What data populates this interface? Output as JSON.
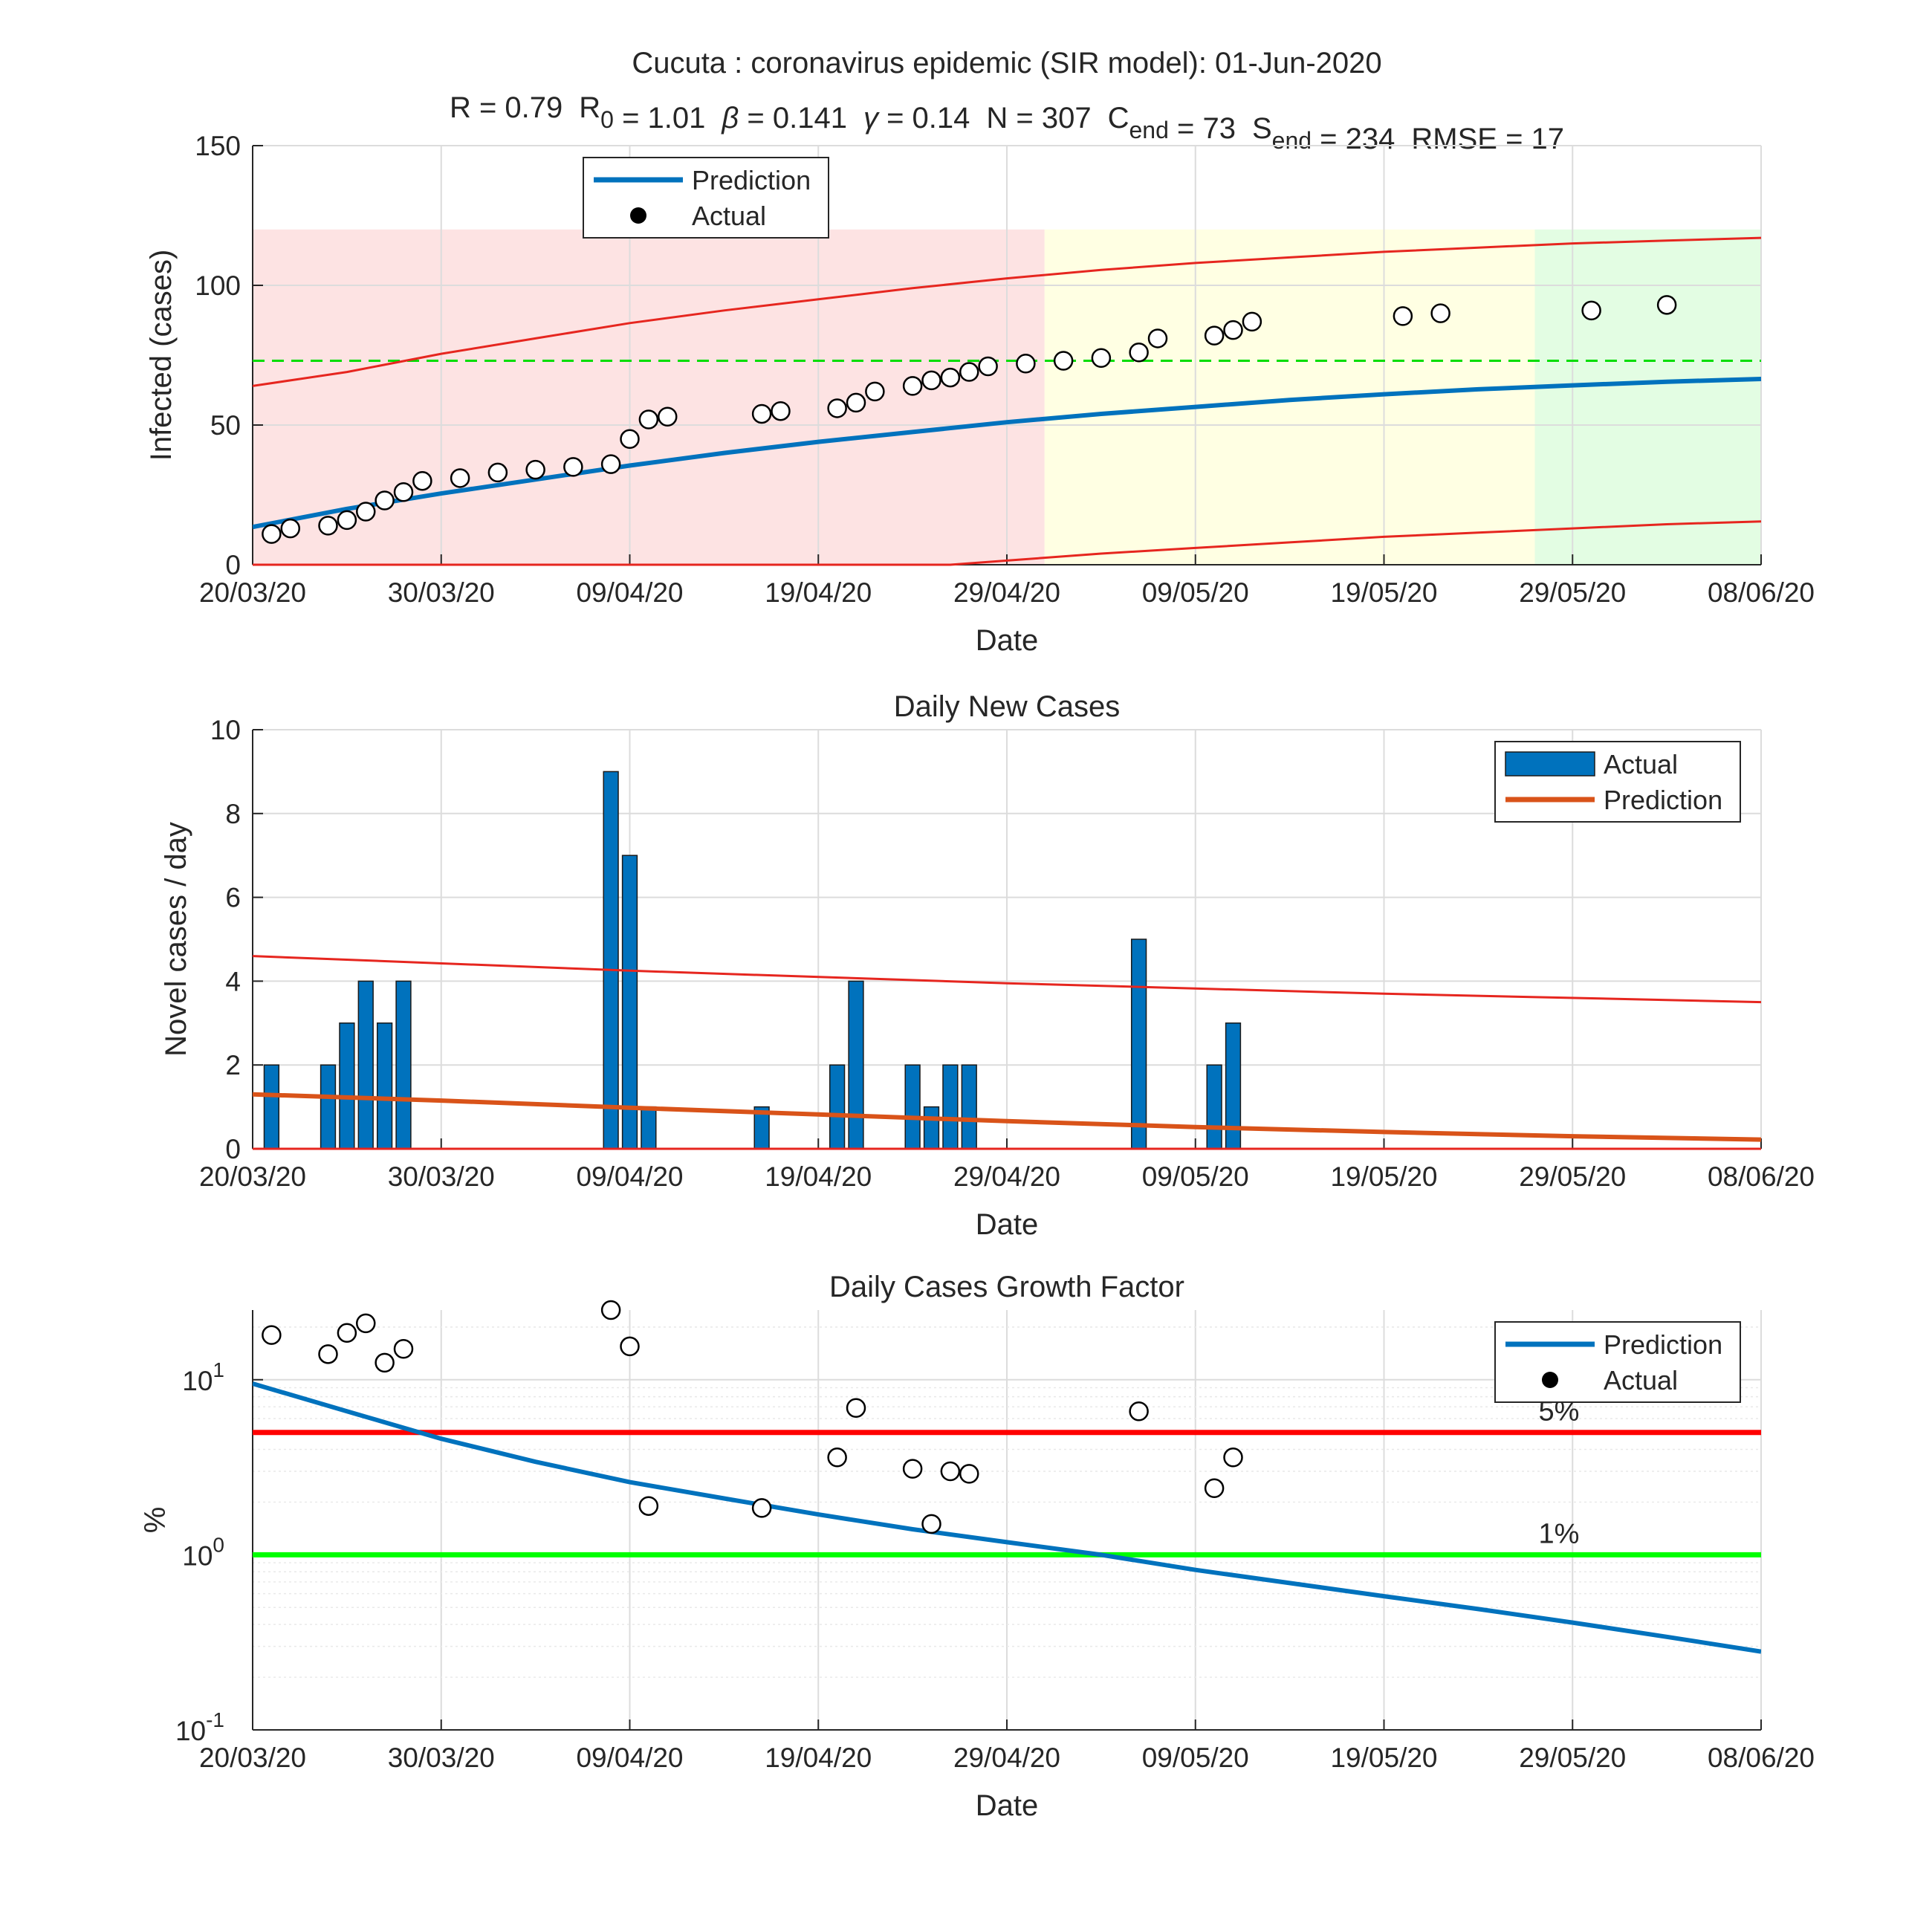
{
  "figure": {
    "title_line1": "Cucuta : coronavirus epidemic (SIR model): 01-Jun-2020",
    "stats": [
      {
        "label": "R",
        "sub": "",
        "value": "0.79"
      },
      {
        "label": "R",
        "sub": "0",
        "value": "1.01"
      },
      {
        "label": "β",
        "sub": "",
        "value": "0.141"
      },
      {
        "label": "γ",
        "sub": "",
        "value": "0.14"
      },
      {
        "label": "N",
        "sub": "",
        "value": "307"
      },
      {
        "label": "C",
        "sub": "end",
        "value": "73"
      },
      {
        "label": "S",
        "sub": "end",
        "value": "234"
      },
      {
        "label": "RMSE",
        "sub": "",
        "value": "17"
      }
    ],
    "x_tick_labels": [
      "20/03/20",
      "30/03/20",
      "09/04/20",
      "19/04/20",
      "29/04/20",
      "09/05/20",
      "19/05/20",
      "29/05/20",
      "08/06/20"
    ],
    "colors": {
      "prediction_blue": "#0072bd",
      "bar_blue": "#0072bd",
      "prediction_orange": "#d95319",
      "bound_red": "#e6261f",
      "level_red": "#ff0000",
      "level_green": "#00ff00",
      "threshold_green_dashed": "#00dd00",
      "zone_red": "#fde3e3",
      "zone_yellow": "#ffffe3",
      "zone_green": "#e3fde3"
    }
  },
  "chart_data": [
    {
      "type": "line",
      "title": "",
      "xlabel": "Date",
      "ylabel": "Infected (cases)",
      "x_range": [
        "2020-03-20",
        "2020-06-08"
      ],
      "ylim": [
        0,
        150
      ],
      "y_ticks": [
        0,
        50,
        100,
        150
      ],
      "grid": true,
      "legend": {
        "placement": "top-left",
        "entries": [
          "Prediction",
          "Actual"
        ]
      },
      "background_zones": [
        {
          "color": "red",
          "from": "2020-03-20",
          "to": "2020-05-01",
          "y_top": 120
        },
        {
          "color": "yellow",
          "from": "2020-05-01",
          "to": "2020-05-27",
          "y_top": 120
        },
        {
          "color": "green",
          "from": "2020-05-27",
          "to": "2020-06-08",
          "y_top": 120
        }
      ],
      "threshold_line": {
        "y": 73,
        "style": "dashed",
        "color": "green"
      },
      "series": [
        {
          "name": "Prediction",
          "kind": "line",
          "points": [
            [
              "2020-03-20",
              13.5
            ],
            [
              "2020-03-25",
              20
            ],
            [
              "2020-03-30",
              25.5
            ],
            [
              "2020-04-04",
              30.5
            ],
            [
              "2020-04-09",
              35.5
            ],
            [
              "2020-04-14",
              40
            ],
            [
              "2020-04-19",
              44
            ],
            [
              "2020-04-24",
              47.5
            ],
            [
              "2020-04-29",
              51
            ],
            [
              "2020-05-04",
              54
            ],
            [
              "2020-05-09",
              56.5
            ],
            [
              "2020-05-14",
              59
            ],
            [
              "2020-05-19",
              61
            ],
            [
              "2020-05-24",
              62.8
            ],
            [
              "2020-05-29",
              64.2
            ],
            [
              "2020-06-03",
              65.5
            ],
            [
              "2020-06-08",
              66.5
            ]
          ]
        },
        {
          "name": "Upper bound",
          "kind": "line",
          "points": [
            [
              "2020-03-20",
              64
            ],
            [
              "2020-03-25",
              69
            ],
            [
              "2020-03-30",
              75.5
            ],
            [
              "2020-04-04",
              81
            ],
            [
              "2020-04-09",
              86.5
            ],
            [
              "2020-04-14",
              91
            ],
            [
              "2020-04-19",
              95
            ],
            [
              "2020-04-24",
              99
            ],
            [
              "2020-04-29",
              102.5
            ],
            [
              "2020-05-04",
              105.5
            ],
            [
              "2020-05-09",
              108
            ],
            [
              "2020-05-14",
              110
            ],
            [
              "2020-05-19",
              112
            ],
            [
              "2020-05-24",
              113.5
            ],
            [
              "2020-05-29",
              115
            ],
            [
              "2020-06-03",
              116
            ],
            [
              "2020-06-08",
              117
            ]
          ]
        },
        {
          "name": "Lower bound",
          "kind": "line",
          "points": [
            [
              "2020-03-20",
              0
            ],
            [
              "2020-04-26",
              0
            ],
            [
              "2020-04-29",
              1.5
            ],
            [
              "2020-05-04",
              4
            ],
            [
              "2020-05-09",
              6
            ],
            [
              "2020-05-14",
              8
            ],
            [
              "2020-05-19",
              10
            ],
            [
              "2020-05-24",
              11.5
            ],
            [
              "2020-05-29",
              13
            ],
            [
              "2020-06-03",
              14.5
            ],
            [
              "2020-06-08",
              15.5
            ]
          ]
        },
        {
          "name": "Actual",
          "kind": "markers",
          "points": [
            [
              "2020-03-21",
              11
            ],
            [
              "2020-03-22",
              13
            ],
            [
              "2020-03-24",
              14
            ],
            [
              "2020-03-25",
              16
            ],
            [
              "2020-03-26",
              19
            ],
            [
              "2020-03-27",
              23
            ],
            [
              "2020-03-28",
              26
            ],
            [
              "2020-03-29",
              30
            ],
            [
              "2020-03-31",
              31
            ],
            [
              "2020-04-02",
              33
            ],
            [
              "2020-04-04",
              34
            ],
            [
              "2020-04-06",
              35
            ],
            [
              "2020-04-08",
              36
            ],
            [
              "2020-04-09",
              45
            ],
            [
              "2020-04-10",
              52
            ],
            [
              "2020-04-11",
              53
            ],
            [
              "2020-04-16",
              54
            ],
            [
              "2020-04-17",
              55
            ],
            [
              "2020-04-20",
              56
            ],
            [
              "2020-04-21",
              58
            ],
            [
              "2020-04-22",
              62
            ],
            [
              "2020-04-24",
              64
            ],
            [
              "2020-04-25",
              66
            ],
            [
              "2020-04-26",
              67
            ],
            [
              "2020-04-27",
              69
            ],
            [
              "2020-04-28",
              71
            ],
            [
              "2020-04-30",
              72
            ],
            [
              "2020-05-02",
              73
            ],
            [
              "2020-05-04",
              74
            ],
            [
              "2020-05-06",
              76
            ],
            [
              "2020-05-07",
              81
            ],
            [
              "2020-05-10",
              82
            ],
            [
              "2020-05-11",
              84
            ],
            [
              "2020-05-12",
              87
            ],
            [
              "2020-05-20",
              89
            ],
            [
              "2020-05-22",
              90
            ],
            [
              "2020-05-30",
              91
            ],
            [
              "2020-06-03",
              93
            ]
          ]
        }
      ]
    },
    {
      "type": "bar",
      "title": "Daily New Cases",
      "xlabel": "Date",
      "ylabel": "Novel cases / day",
      "x_range": [
        "2020-03-20",
        "2020-06-08"
      ],
      "ylim": [
        0,
        10
      ],
      "y_ticks": [
        0,
        2,
        4,
        6,
        8,
        10
      ],
      "grid": true,
      "legend": {
        "placement": "top-right",
        "entries": [
          "Actual",
          "Prediction"
        ]
      },
      "series": [
        {
          "name": "Actual",
          "kind": "bars",
          "points": [
            [
              "2020-03-21",
              2
            ],
            [
              "2020-03-24",
              2
            ],
            [
              "2020-03-25",
              3
            ],
            [
              "2020-03-26",
              4
            ],
            [
              "2020-03-27",
              3
            ],
            [
              "2020-03-28",
              4
            ],
            [
              "2020-04-08",
              9
            ],
            [
              "2020-04-09",
              7
            ],
            [
              "2020-04-10",
              1
            ],
            [
              "2020-04-16",
              1
            ],
            [
              "2020-04-20",
              2
            ],
            [
              "2020-04-21",
              4
            ],
            [
              "2020-04-24",
              2
            ],
            [
              "2020-04-25",
              1
            ],
            [
              "2020-04-26",
              2
            ],
            [
              "2020-04-27",
              2
            ],
            [
              "2020-05-06",
              5
            ],
            [
              "2020-05-10",
              2
            ],
            [
              "2020-05-11",
              3
            ]
          ]
        },
        {
          "name": "Prediction",
          "kind": "line",
          "points": [
            [
              "2020-03-20",
              1.3
            ],
            [
              "2020-03-30",
              1.15
            ],
            [
              "2020-04-09",
              0.98
            ],
            [
              "2020-04-19",
              0.82
            ],
            [
              "2020-04-29",
              0.66
            ],
            [
              "2020-05-09",
              0.52
            ],
            [
              "2020-05-19",
              0.4
            ],
            [
              "2020-05-29",
              0.3
            ],
            [
              "2020-06-08",
              0.22
            ]
          ]
        },
        {
          "name": "Upper bound",
          "kind": "line",
          "points": [
            [
              "2020-03-20",
              4.6
            ],
            [
              "2020-04-09",
              4.25
            ],
            [
              "2020-04-29",
              3.95
            ],
            [
              "2020-05-19",
              3.7
            ],
            [
              "2020-06-08",
              3.5
            ]
          ]
        },
        {
          "name": "Lower bound",
          "kind": "line",
          "points": [
            [
              "2020-03-20",
              0
            ],
            [
              "2020-06-08",
              0
            ]
          ]
        }
      ]
    },
    {
      "type": "scatter",
      "title": "Daily Cases Growth Factor",
      "xlabel": "Date",
      "ylabel": "%",
      "x_range": [
        "2020-03-20",
        "2020-06-08"
      ],
      "y_scale": "log",
      "ylim": [
        0.1,
        25
      ],
      "y_tick_labels": [
        {
          "base": "10",
          "exp": "-1"
        },
        {
          "base": "10",
          "exp": "0"
        },
        {
          "base": "10",
          "exp": "1"
        }
      ],
      "grid": true,
      "legend": {
        "placement": "top-right",
        "entries": [
          "Prediction",
          "Actual"
        ]
      },
      "reference_lines": [
        {
          "y": 5,
          "label": "5%",
          "color": "red"
        },
        {
          "y": 1,
          "label": "1%",
          "color": "green"
        }
      ],
      "series": [
        {
          "name": "Prediction",
          "kind": "line",
          "points": [
            [
              "2020-03-20",
              9.5
            ],
            [
              "2020-03-25",
              6.6
            ],
            [
              "2020-03-30",
              4.6
            ],
            [
              "2020-04-04",
              3.4
            ],
            [
              "2020-04-09",
              2.6
            ],
            [
              "2020-04-14",
              2.1
            ],
            [
              "2020-04-19",
              1.7
            ],
            [
              "2020-04-24",
              1.4
            ],
            [
              "2020-04-29",
              1.18
            ],
            [
              "2020-05-04",
              1.0
            ],
            [
              "2020-05-09",
              0.82
            ],
            [
              "2020-05-14",
              0.69
            ],
            [
              "2020-05-19",
              0.58
            ],
            [
              "2020-05-24",
              0.49
            ],
            [
              "2020-05-29",
              0.41
            ],
            [
              "2020-06-03",
              0.34
            ],
            [
              "2020-06-08",
              0.28
            ]
          ]
        },
        {
          "name": "Actual",
          "kind": "markers",
          "points": [
            [
              "2020-03-21",
              18
            ],
            [
              "2020-03-24",
              14
            ],
            [
              "2020-03-25",
              18.5
            ],
            [
              "2020-03-26",
              21
            ],
            [
              "2020-03-27",
              12.5
            ],
            [
              "2020-03-28",
              15
            ],
            [
              "2020-04-08",
              25
            ],
            [
              "2020-04-09",
              15.5
            ],
            [
              "2020-04-10",
              1.9
            ],
            [
              "2020-04-16",
              1.85
            ],
            [
              "2020-04-20",
              3.6
            ],
            [
              "2020-04-21",
              6.9
            ],
            [
              "2020-04-24",
              3.1
            ],
            [
              "2020-04-25",
              1.5
            ],
            [
              "2020-04-26",
              3.0
            ],
            [
              "2020-04-27",
              2.9
            ],
            [
              "2020-05-06",
              6.6
            ],
            [
              "2020-05-10",
              2.4
            ],
            [
              "2020-05-11",
              3.6
            ]
          ]
        }
      ]
    }
  ]
}
